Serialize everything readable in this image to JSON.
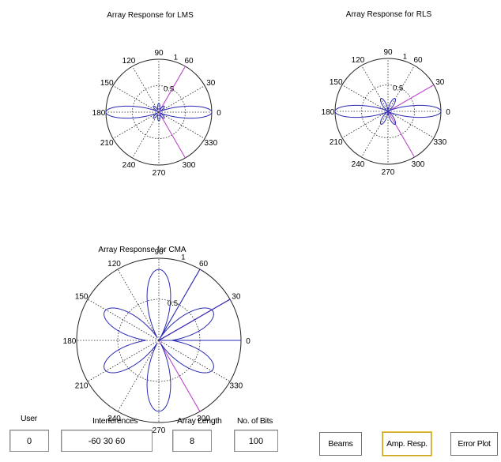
{
  "colors": {
    "pattern": "#2a2ab4",
    "interference": "#c04ad0",
    "grid": "#222222",
    "button_active_border": "#c9a21c"
  },
  "plots": [
    {
      "title": "Array Response for LMS",
      "rticks": [
        "0.5",
        "1"
      ],
      "angle_labels": [
        "0",
        "30",
        "60",
        "90",
        "120",
        "150",
        "180",
        "210",
        "240",
        "270",
        "300",
        "330"
      ]
    },
    {
      "title": "Array Response for RLS",
      "rticks": [
        "0.5",
        "1"
      ],
      "angle_labels": [
        "0",
        "30",
        "60",
        "90",
        "120",
        "150",
        "180",
        "210",
        "240",
        "270",
        "300",
        "330"
      ]
    },
    {
      "title": "Array Response for CMA",
      "rticks": [
        "0.5",
        "1"
      ],
      "angle_labels": [
        "0",
        "30",
        "60",
        "90",
        "120",
        "150",
        "180",
        "210",
        "240",
        "270",
        "300",
        "330"
      ]
    }
  ],
  "controls": {
    "user_label": "User",
    "user_value": "0",
    "interferences_label": "Interferences",
    "interferences_value": "-60 30 60",
    "array_length_label": "Array Length",
    "array_length_value": "8",
    "bits_label": "No. of Bits",
    "bits_value": "100"
  },
  "buttons": {
    "beams": "Beams",
    "amp_resp": "Amp. Resp.",
    "error_plot": "Error Plot"
  }
}
